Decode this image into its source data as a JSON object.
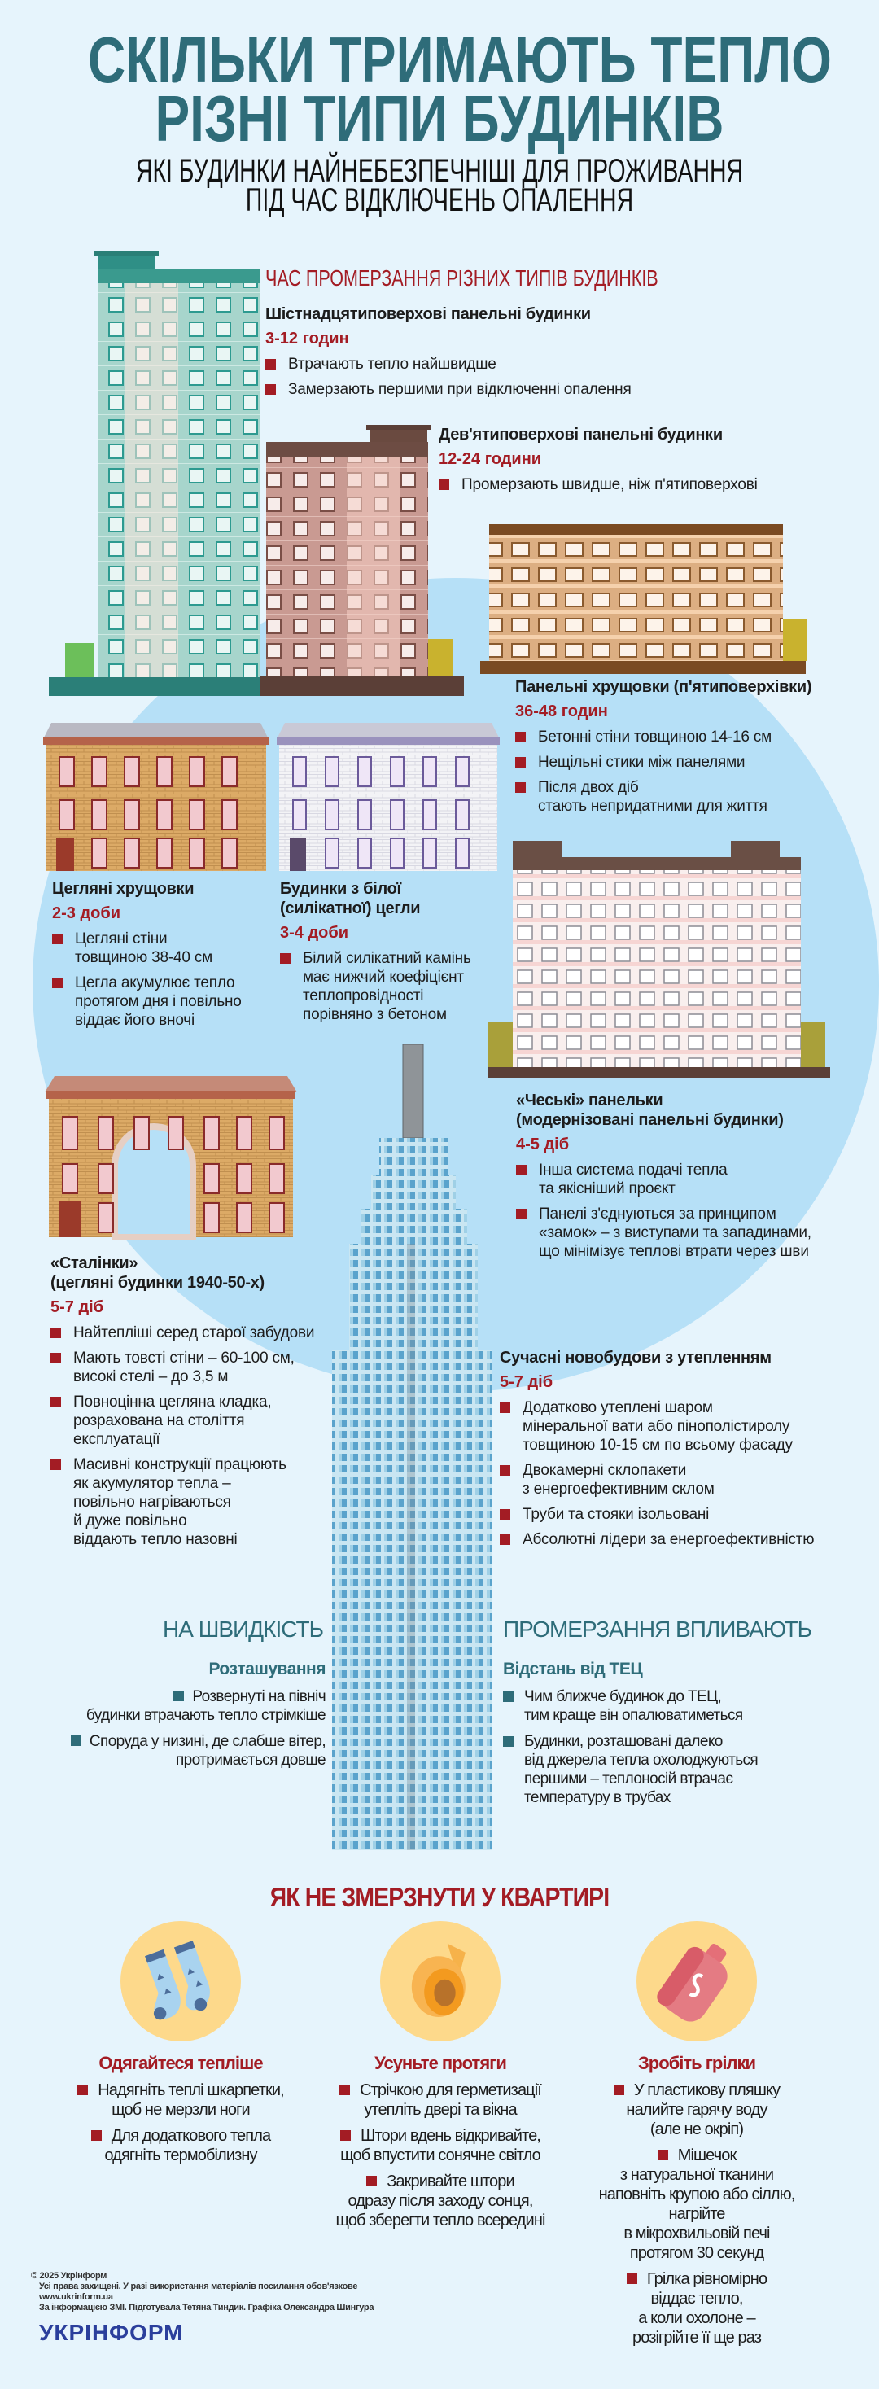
{
  "header": {
    "title_line1": "СКІЛЬКИ ТРИМАЮТЬ ТЕПЛО",
    "title_line2": "РІЗНІ ТИПИ БУДИНКІВ",
    "subtitle_line1": "ЯКІ БУДИНКИ НАЙНЕБЕЗПЕЧНІШІ ДЛЯ ПРОЖИВАННЯ",
    "subtitle_line2": "ПІД ЧАС ВІДКЛЮЧЕНЬ ОПАЛЕННЯ"
  },
  "section_title": "ЧАС ПРОМЕРЗАННЯ РІЗНИХ ТИПІВ БУДИНКІВ",
  "buildings": [
    {
      "heading": "Шістнадцятиповерхові панельні будинки",
      "time": "3-12 годин",
      "bullets": [
        "Втрачають тепло найшвидше",
        "Замерзають першими при відключенні опалення"
      ]
    },
    {
      "heading": "Дев'ятиповерхові панельні будинки",
      "time": "12-24 години",
      "bullets": [
        "Промерзають швидше, ніж п'ятиповерхові"
      ]
    },
    {
      "heading": "Панельні хрущовки (п'ятиповерхівки)",
      "time": "36-48 годин",
      "bullets": [
        "Бетонні стіни товщиною 14-16 см",
        "Нещільні стики між панелями",
        "Після двох діб\nстають непридатними для життя"
      ]
    },
    {
      "heading": "Цегляні хрущовки",
      "time": "2-3 доби",
      "bullets": [
        "Цегляні стіни\nтовщиною 38-40 см",
        "Цегла акумулює тепло\nпротягом дня і повільно\nвіддає його вночі"
      ]
    },
    {
      "heading": "Будинки з білої\n(силікатної) цегли",
      "time": "3-4 доби",
      "bullets": [
        "Білий силікатний камінь\nмає нижчий коефіцієнт\nтеплопровідності\nпорівняно з бетоном"
      ]
    },
    {
      "heading": "«Чеські» панельки\n(модернізовані панельні будинки)",
      "time": "4-5 діб",
      "bullets": [
        "Інша система подачі тепла\nта якісніший проєкт",
        "Панелі з'єднуються за принципом\n«замок» – з виступами та западинами,\nщо мінімізує теплові втрати через шви"
      ]
    },
    {
      "heading": "«Сталінки»\n(цегляні будинки 1940-50-х)",
      "time": "5-7 діб",
      "bullets": [
        "Найтепліші серед старої забудови",
        "Мають товсті стіни – 60-100 см,\nвисокі стелі – до 3,5 м",
        "Повноцінна цегляна кладка,\nрозрахована на століття\nексплуатації",
        "Масивні конструкції працюють\nяк акумулятор тепла –\nповільно нагріваються\nй дуже повільно\nвіддають тепло назовні"
      ]
    },
    {
      "heading": "Сучасні новобудови з утепленням",
      "time": "5-7 діб",
      "bullets": [
        "Додатково утеплені шаром\nмінеральної вати або пінополістиролу\nтовщиною 10-15 см по всьому фасаду",
        "Двокамерні склопакети\nз енергоефективним склом",
        "Труби та стояки ізольовані",
        "Абсолютні лідери за енергоефективністю"
      ]
    }
  ],
  "factors": {
    "title_left": "НА ШВИДКІСТЬ",
    "title_right": "ПРОМЕРЗАННЯ ВПЛИВАЮТЬ",
    "left": {
      "heading": "Розташування",
      "bullets": [
        "Розвернуті на північ\nбудинки втрачають тепло стрімкіше",
        "Споруда у низині, де слабше вітер,\nпротримається довше"
      ]
    },
    "right": {
      "heading": "Відстань від ТЕЦ",
      "bullets": [
        "Чим ближче будинок до ТЕЦ,\nтим краще він опалюватиметься",
        "Будинки, розташовані далеко\nвід джерела тепла охолоджуються\nпершими – теплоносій втрачає\nтемпературу в трубах"
      ]
    }
  },
  "tips": {
    "title": "ЯК НЕ ЗМЕРЗНУТИ У КВАРТИРІ",
    "items": [
      {
        "icon": "socks-icon",
        "heading": "Одягайтеся тепліше",
        "bullets": [
          "Надягніть теплі шкарпетки,\nщоб не мерзли ноги",
          "Для додаткового тепла\nодягніть термобілизну"
        ]
      },
      {
        "icon": "sealing-tape-icon",
        "heading": "Усуньте протяги",
        "bullets": [
          "Стрічкою для герметизації\nутепліть двері та вікна",
          "Штори вдень відкривайте,\nщоб впустити сонячне світло",
          "Закривайте штори\nодразу після заходу сонця,\nщоб зберегти тепло всередині"
        ]
      },
      {
        "icon": "hot-water-bottle-icon",
        "heading": "Зробіть грілки",
        "bullets": [
          "У пластикову пляшку\nналийте гарячу воду\n(але не окріп)",
          "Мішечок\nз натуральної тканини\nнаповніть крупою або сіллю,\nнагрійте\nв мікрохвильовій печі\nпротягом 30 секунд",
          "Грілка рівномірно\nвіддає тепло,\nа коли охолоне –\nрозігрійте її ще раз"
        ]
      }
    ]
  },
  "footer": {
    "copyright": "© 2025 Укрінформ",
    "rights": "Усі права захищені. У разі використання матеріалів посилання обов'язкове",
    "url": "www.ukrinform.ua",
    "credits": "За інформацією ЗМІ. Підготувала Тетяна Тиндик. Графіка Олександра Шингура",
    "logo": "УКРІНФОРМ"
  },
  "colors": {
    "background": "#e6f4fc",
    "accent_red": "#a31c24",
    "teal": "#2e6c79",
    "blob": "#b6e0f7",
    "icon_circle": "#fdd98b",
    "logo_blue": "#2b3f9c"
  }
}
